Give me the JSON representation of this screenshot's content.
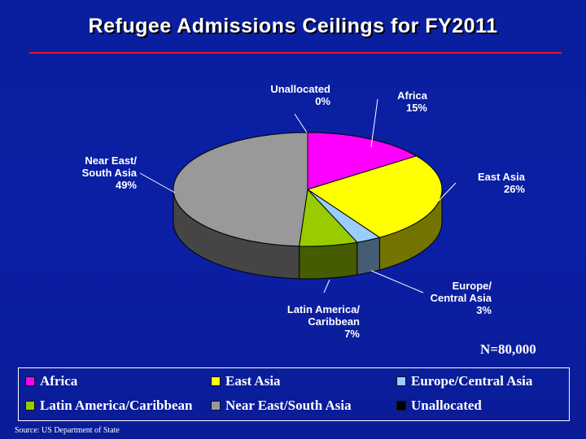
{
  "title": "Refugee Admissions Ceilings for FY2011",
  "n_label": "N=80,000",
  "source": "Source: US Department of State",
  "legend": [
    {
      "label": "Africa",
      "color": "#ff00ff"
    },
    {
      "label": "East Asia",
      "color": "#ffff00"
    },
    {
      "label": "Europe/Central Asia",
      "color": "#99ccff"
    },
    {
      "label": "Latin America/Caribbean",
      "color": "#99cc00"
    },
    {
      "label": "Near East/South Asia",
      "color": "#999999"
    },
    {
      "label": "Unallocated",
      "color": "#000000"
    }
  ],
  "chart_data": {
    "type": "pie",
    "title": "Refugee Admissions Ceilings for FY2011",
    "slices": [
      {
        "name": "Africa",
        "callout": [
          "Africa",
          "15%"
        ],
        "value": 15,
        "color": "#ff00ff"
      },
      {
        "name": "East Asia",
        "callout": [
          "East Asia",
          "26%"
        ],
        "value": 26,
        "color": "#ffff00"
      },
      {
        "name": "Europe/Central Asia",
        "callout": [
          "Europe/",
          "Central Asia",
          "3%"
        ],
        "value": 3,
        "color": "#99ccff"
      },
      {
        "name": "Latin America/Caribbean",
        "callout": [
          "Latin America/",
          "Caribbean",
          "7%"
        ],
        "value": 7,
        "color": "#99cc00"
      },
      {
        "name": "Near East/South Asia",
        "callout": [
          "Near East/",
          "South Asia",
          "49%"
        ],
        "value": 49,
        "color": "#999999"
      },
      {
        "name": "Unallocated",
        "callout": [
          "Unallocated",
          "0%"
        ],
        "value": 0,
        "color": "#000000"
      }
    ],
    "three_d": true,
    "legend_position": "bottom"
  }
}
